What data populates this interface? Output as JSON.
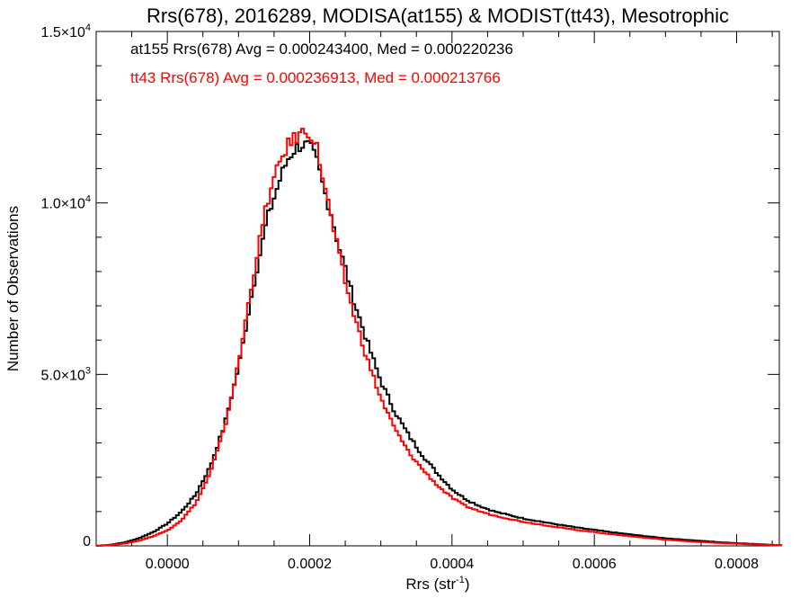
{
  "chart_data": {
    "type": "line",
    "title": "Rrs(678), 2016289, MODISA(at155) & MODIST(tt43), Mesotrophic",
    "xlabel": "Rrs (str",
    "xlabel_sup": "-1",
    "xlabel_close": ")",
    "ylabel": "Number of Observations",
    "xlim": [
      -0.0001,
      0.00086
    ],
    "ylim": [
      0,
      15000
    ],
    "x_ticks": [
      {
        "value": 0.0,
        "label": "0.0000"
      },
      {
        "value": 0.0002,
        "label": "0.0002"
      },
      {
        "value": 0.0004,
        "label": "0.0004"
      },
      {
        "value": 0.0006,
        "label": "0.0006"
      },
      {
        "value": 0.0008,
        "label": "0.0008"
      }
    ],
    "y_ticks": [
      {
        "value": 0,
        "mant": "0",
        "exp": ""
      },
      {
        "value": 5000,
        "mant": "5.0×10",
        "exp": "3"
      },
      {
        "value": 10000,
        "mant": "1.0×10",
        "exp": "4"
      },
      {
        "value": 15000,
        "mant": "1.5×10",
        "exp": "4"
      }
    ],
    "annotations": [
      {
        "text": "at155 Rrs(678) Avg = 0.000243400, Med = 0.000220236",
        "color": "#000000"
      },
      {
        "text": "tt43 Rrs(678) Avg = 0.000236913, Med = 0.000213766",
        "color": "#ff0000"
      }
    ],
    "series": [
      {
        "color": "#000000",
        "x": [
          -0.0001,
          -8e-05,
          -6e-05,
          -4e-05,
          -2e-05,
          0.0,
          2e-05,
          4e-05,
          6e-05,
          8e-05,
          0.0001,
          0.00012,
          0.00014,
          0.00016,
          0.00017,
          0.00018,
          0.00019,
          0.0002,
          0.00021,
          0.00022,
          0.00023,
          0.00024,
          0.00025,
          0.00026,
          0.00028,
          0.0003,
          0.00032,
          0.00034,
          0.00036,
          0.00038,
          0.0004,
          0.00042,
          0.00044,
          0.00046,
          0.00048,
          0.0005,
          0.00054,
          0.00058,
          0.00062,
          0.00066,
          0.0007,
          0.00074,
          0.00078,
          0.00082,
          0.00086
        ],
        "y": [
          0,
          30,
          100,
          220,
          400,
          650,
          1000,
          1500,
          2300,
          3500,
          5200,
          7500,
          9500,
          10800,
          11300,
          11600,
          11700,
          11650,
          11200,
          10400,
          9700,
          8800,
          8100,
          7300,
          6000,
          4800,
          3900,
          3200,
          2600,
          2100,
          1650,
          1350,
          1150,
          1000,
          900,
          800,
          650,
          520,
          410,
          310,
          220,
          160,
          100,
          60,
          20
        ]
      },
      {
        "color": "#ff0000",
        "x": [
          -0.0001,
          -8e-05,
          -6e-05,
          -4e-05,
          -2e-05,
          0.0,
          2e-05,
          4e-05,
          6e-05,
          8e-05,
          0.0001,
          0.00012,
          0.00014,
          0.00016,
          0.00017,
          0.00018,
          0.00019,
          0.0002,
          0.00021,
          0.00022,
          0.00023,
          0.00024,
          0.00025,
          0.00026,
          0.00028,
          0.0003,
          0.00032,
          0.00034,
          0.00036,
          0.00038,
          0.0004,
          0.00042,
          0.00044,
          0.00046,
          0.00048,
          0.0005,
          0.00054,
          0.00058,
          0.00062,
          0.00066,
          0.0007,
          0.00074,
          0.00078,
          0.00082,
          0.00086
        ],
        "y": [
          0,
          20,
          70,
          150,
          280,
          450,
          750,
          1250,
          2100,
          3400,
          5300,
          7800,
          10000,
          11300,
          11700,
          11900,
          12050,
          12100,
          11600,
          10600,
          9600,
          8600,
          7700,
          6900,
          5500,
          4300,
          3400,
          2700,
          2200,
          1750,
          1400,
          1150,
          1000,
          880,
          790,
          700,
          570,
          450,
          350,
          260,
          180,
          120,
          80,
          45,
          15
        ]
      }
    ]
  }
}
